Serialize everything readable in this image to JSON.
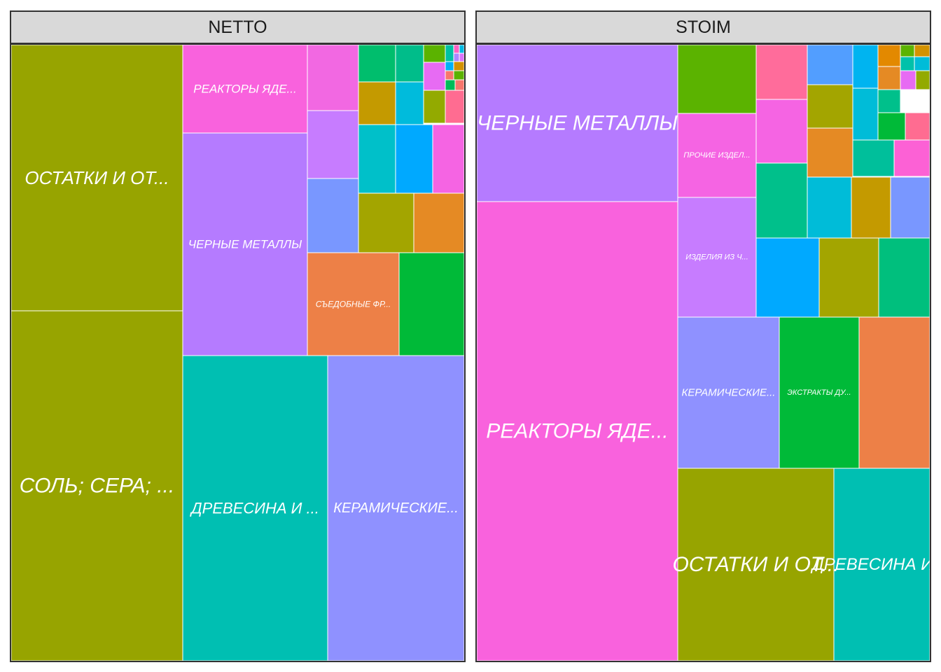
{
  "chart_data": [
    {
      "type": "treemap",
      "facet": "NETTO",
      "tiles": [
        {
          "label": "ОСТАТКИ И ОТ...",
          "value": 0.0852,
          "color": "#97a400"
        },
        {
          "label": "СОЛЬ; СЕРА; ...",
          "value": 0.1078,
          "color": "#97a400"
        },
        {
          "label": "РЕАКТОРЫ ЯДЕ...",
          "value": 0.0205,
          "color": "#f962dd"
        },
        {
          "label": "ЧЕРНЫЕ МЕТАЛЛЫ",
          "value": 0.0519,
          "color": "#b57bff"
        },
        {
          "label": "ДРЕВЕСИНА И ...",
          "value": 0.0704,
          "color": "#00bfb2"
        },
        {
          "label": "КЕРАМИЧЕСКИЕ...",
          "value": 0.0668,
          "color": "#8f91ff"
        },
        {
          "label": "СЪЕДОБНЫЕ ФР...",
          "value": 0.0149,
          "color": "#ed8047"
        },
        {
          "label": "",
          "value": 0.0109,
          "color": "#00ba38"
        },
        {
          "label": "",
          "value": 0.0148,
          "color": "#f268e2"
        },
        {
          "label": "",
          "value": 0.0153,
          "color": "#c77cff"
        },
        {
          "label": "",
          "value": 0.0108,
          "color": "#7997ff"
        },
        {
          "label": "",
          "value": 0.0052,
          "color": "#00be6d"
        },
        {
          "label": "",
          "value": 0.0035,
          "color": "#00bd8a"
        },
        {
          "label": "",
          "value": 0.0047,
          "color": "#c49a00"
        },
        {
          "label": "",
          "value": 0.0035,
          "color": "#00bbdc"
        },
        {
          "label": "",
          "value": 0.0074,
          "color": "#00c0c9"
        },
        {
          "label": "",
          "value": 0.0075,
          "color": "#00a9ff"
        },
        {
          "label": "",
          "value": 0.0073,
          "color": "#f564e3"
        },
        {
          "label": "",
          "value": 0.0065,
          "color": "#a3a500"
        },
        {
          "label": "",
          "value": 0.0064,
          "color": "#e58a24"
        },
        {
          "label": "",
          "value": 0.0108,
          "color": "#5bb300"
        },
        {
          "label": "",
          "value": 0.0009,
          "color": "#e76bf3"
        },
        {
          "label": "",
          "value": 0.0014,
          "color": "#93aa00"
        },
        {
          "label": "",
          "value": 0.0011,
          "color": "#ff6c91"
        },
        {
          "label": "",
          "value": 0.0012,
          "color": "#00c1a3"
        },
        {
          "label": "",
          "value": 0.0005,
          "color": "#00b0f6"
        },
        {
          "label": "",
          "value": 0.0006,
          "color": "#d39200"
        },
        {
          "label": "",
          "value": 0.0006,
          "color": "#f8766d"
        },
        {
          "label": "",
          "value": 0.0006,
          "color": "#5bb300"
        },
        {
          "label": "",
          "value": 0.0005,
          "color": "#ff61c3"
        },
        {
          "label": "",
          "value": 0.0004,
          "color": "#00b9e3"
        },
        {
          "label": "",
          "value": 0.0004,
          "color": "#ae87ff"
        },
        {
          "label": "",
          "value": 0.0003,
          "color": "#db72fb"
        },
        {
          "label": "",
          "value": 0.0003,
          "color": "#00bc59"
        },
        {
          "label": "",
          "value": 0.0003,
          "color": "#f8766d"
        }
      ]
    },
    {
      "type": "treemap",
      "facet": "STOIM",
      "tiles": [
        {
          "label": "ЧЕРНЫЕ МЕТАЛЛЫ",
          "value": 0.0643,
          "color": "#b57bff"
        },
        {
          "label": "РЕАКТОРЫ ЯДЕ...",
          "value": 0.225,
          "color": "#f962dd"
        },
        {
          "label": "ПРОЧИЕ ИЗДЕЛ...",
          "value": 0.014,
          "color": "#f564e3"
        },
        {
          "label": "ИЗДЕЛИЯ ИЗ Ч...",
          "value": 0.0201,
          "color": "#c77cff"
        },
        {
          "label": "КЕРАМИЧЕСКИЕ...",
          "value": 0.0269,
          "color": "#8f91ff"
        },
        {
          "label": "ЭКСТРАКТЫ ДУ...",
          "value": 0.0214,
          "color": "#00ba38"
        },
        {
          "label": "",
          "value": 0.0188,
          "color": "#ed8047"
        },
        {
          "label": "ОСТАТКИ И ОТ...",
          "value": 0.0555,
          "color": "#97a400"
        },
        {
          "label": "ДРЕВЕСИНА И ...",
          "value": 0.0347,
          "color": "#00bfb2"
        },
        {
          "label": "",
          "value": 0.0121,
          "color": "#5bb300"
        },
        {
          "label": "",
          "value": 0.0072,
          "color": "#ff6c9b"
        },
        {
          "label": "",
          "value": 0.0062,
          "color": "#f564e3"
        },
        {
          "label": "",
          "value": 0.0086,
          "color": "#00c08b"
        },
        {
          "label": "",
          "value": 0.008,
          "color": "#00a9ff"
        },
        {
          "label": "",
          "value": 0.0076,
          "color": "#a3a500"
        },
        {
          "label": "",
          "value": 0.0071,
          "color": "#00bf7d"
        },
        {
          "label": "",
          "value": 0.0045,
          "color": "#529eff"
        },
        {
          "label": "",
          "value": 0.0049,
          "color": "#a3a500"
        },
        {
          "label": "",
          "value": 0.0052,
          "color": "#e58a24"
        },
        {
          "label": "",
          "value": 0.002,
          "color": "#00b4f0"
        },
        {
          "label": "",
          "value": 0.0024,
          "color": "#00bcd8"
        },
        {
          "label": "",
          "value": 0.0032,
          "color": "#00bf9b"
        },
        {
          "label": "",
          "value": 0.0031,
          "color": "#fc61d5"
        },
        {
          "label": "",
          "value": 0.0049,
          "color": "#00bcd8"
        },
        {
          "label": "",
          "value": 0.0041,
          "color": "#c49a00"
        },
        {
          "label": "",
          "value": 0.0039,
          "color": "#7997ff"
        },
        {
          "label": "",
          "value": 0.0012,
          "color": "#e38900"
        },
        {
          "label": "",
          "value": 0.0011,
          "color": "#e58a24"
        },
        {
          "label": "",
          "value": 0.0011,
          "color": "#00c08b"
        },
        {
          "label": "",
          "value": 0.0014,
          "color": "#00ba38"
        },
        {
          "label": "",
          "value": 0.0014,
          "color": "#ff6c91"
        },
        {
          "label": "",
          "value": 0.0005,
          "color": "#5bb300"
        },
        {
          "label": "",
          "value": 0.0005,
          "color": "#d39200"
        },
        {
          "label": "",
          "value": 0.0004,
          "color": "#00c1aa"
        },
        {
          "label": "",
          "value": 0.0004,
          "color": "#00bcd8"
        },
        {
          "label": "",
          "value": 0.0004,
          "color": "#e76bf3"
        },
        {
          "label": "",
          "value": 0.0003,
          "color": "#93aa00"
        }
      ]
    }
  ]
}
